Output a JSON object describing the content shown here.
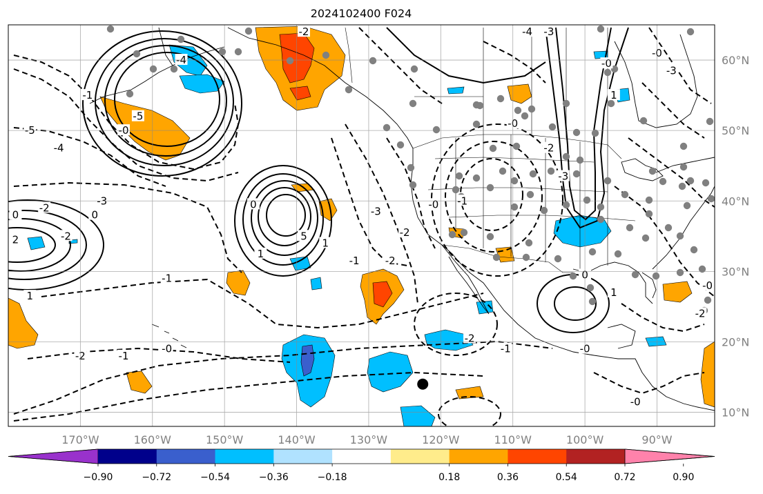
{
  "title": "2024102400 F024",
  "map": {
    "lon_range": [
      -180,
      -82
    ],
    "lat_range": [
      8,
      65
    ],
    "lon_ticks": [
      "170°W",
      "160°W",
      "150°W",
      "140°W",
      "130°W",
      "120°W",
      "110°W",
      "100°W",
      "90°W"
    ],
    "lat_ticks": [
      "10°N",
      "20°N",
      "30°N",
      "40°N",
      "50°N",
      "60°N"
    ],
    "grid": true,
    "marker": {
      "lon": -122.5,
      "lat": 14,
      "color": "#000000"
    }
  },
  "contour_labels": [
    {
      "text": "-5",
      "lon": -177,
      "lat": 50,
      "style": "dashed"
    },
    {
      "text": "-4",
      "lon": -173,
      "lat": 47.5,
      "style": "dashed"
    },
    {
      "text": "-2",
      "lon": -175,
      "lat": 39,
      "style": "dashed"
    },
    {
      "text": "-3",
      "lon": -167,
      "lat": 40,
      "style": "dashed"
    },
    {
      "text": "-2",
      "lon": -172,
      "lat": 35,
      "style": "dashed"
    },
    {
      "text": "0",
      "lon": -179,
      "lat": 38,
      "style": "solid"
    },
    {
      "text": "0",
      "lon": -168,
      "lat": 38,
      "style": "solid"
    },
    {
      "text": "2",
      "lon": -179,
      "lat": 34.5,
      "style": "solid"
    },
    {
      "text": "1",
      "lon": -177,
      "lat": 26.5,
      "style": "solid"
    },
    {
      "text": "-0",
      "lon": -164,
      "lat": 50,
      "style": "dashed"
    },
    {
      "text": "-5",
      "lon": -162,
      "lat": 52,
      "style": "dashed"
    },
    {
      "text": "-1",
      "lon": -169,
      "lat": 55,
      "style": "dashed"
    },
    {
      "text": "-4",
      "lon": -156,
      "lat": 60,
      "style": "dashed"
    },
    {
      "text": "0",
      "lon": -146,
      "lat": 39.5,
      "style": "solid"
    },
    {
      "text": "1",
      "lon": -145,
      "lat": 32.5,
      "style": "solid"
    },
    {
      "text": "5",
      "lon": -139,
      "lat": 35,
      "style": "solid"
    },
    {
      "text": "1",
      "lon": -136,
      "lat": 34,
      "style": "solid"
    },
    {
      "text": "-1",
      "lon": -158,
      "lat": 29,
      "style": "dashed"
    },
    {
      "text": "-2",
      "lon": -170,
      "lat": 18,
      "style": "dashed"
    },
    {
      "text": "-1",
      "lon": -164,
      "lat": 18,
      "style": "dashed"
    },
    {
      "text": "-0",
      "lon": -158,
      "lat": 19,
      "style": "dashed"
    },
    {
      "text": "-3",
      "lon": -129,
      "lat": 38.5,
      "style": "dashed"
    },
    {
      "text": "-2",
      "lon": -125,
      "lat": 35.5,
      "style": "dashed"
    },
    {
      "text": "-0",
      "lon": -121,
      "lat": 39.5,
      "style": "dashed"
    },
    {
      "text": "-2",
      "lon": -127,
      "lat": 31.5,
      "style": "dashed"
    },
    {
      "text": "-1",
      "lon": -132,
      "lat": 31.5,
      "style": "dashed"
    },
    {
      "text": "-2",
      "lon": -116,
      "lat": 20.5,
      "style": "dashed"
    },
    {
      "text": "-1",
      "lon": -111,
      "lat": 19,
      "style": "dashed"
    },
    {
      "text": "-0",
      "lon": -100,
      "lat": 19,
      "style": "dashed"
    },
    {
      "text": "-0",
      "lon": -110,
      "lat": 51,
      "style": "dashed"
    },
    {
      "text": "-2",
      "lon": -105,
      "lat": 47.5,
      "style": "dashed"
    },
    {
      "text": "-3",
      "lon": -103,
      "lat": 43.5,
      "style": "dashed"
    },
    {
      "text": "-1",
      "lon": -117,
      "lat": 40,
      "style": "dashed"
    },
    {
      "text": "0",
      "lon": -100,
      "lat": 29.5,
      "style": "solid"
    },
    {
      "text": "1",
      "lon": -96,
      "lat": 27,
      "style": "solid"
    },
    {
      "text": "-0",
      "lon": -97,
      "lat": 59.5,
      "style": "dashed"
    },
    {
      "text": "1",
      "lon": -96,
      "lat": 55,
      "style": "solid"
    },
    {
      "text": "-3",
      "lon": -88,
      "lat": 58.5,
      "style": "dashed"
    },
    {
      "text": "-2",
      "lon": -139,
      "lat": 64,
      "style": "dashed"
    },
    {
      "text": "-4",
      "lon": -108,
      "lat": 64,
      "style": "dashed"
    },
    {
      "text": "-3",
      "lon": -105,
      "lat": 64,
      "style": "dashed"
    },
    {
      "text": "-0",
      "lon": -90,
      "lat": 61,
      "style": "dashed"
    },
    {
      "text": "-0",
      "lon": -83,
      "lat": 28,
      "style": "dashed"
    },
    {
      "text": "-2",
      "lon": -84,
      "lat": 24,
      "style": "dashed"
    },
    {
      "text": "-0",
      "lon": -93,
      "lat": 11.5,
      "style": "dashed"
    }
  ],
  "colorbar": {
    "ticks": [
      "−0.90",
      "−0.72",
      "−0.54",
      "−0.36",
      "−0.18",
      "0.18",
      "0.36",
      "0.54",
      "0.72",
      "0.90"
    ],
    "colors": [
      "#9932cc",
      "#00008b",
      "#3a5fcd",
      "#00bfff",
      "#b0e2ff",
      "#ffffff",
      "#ffec8b",
      "#ffa500",
      "#ff4500",
      "#b22222",
      "#ff82ab"
    ]
  }
}
